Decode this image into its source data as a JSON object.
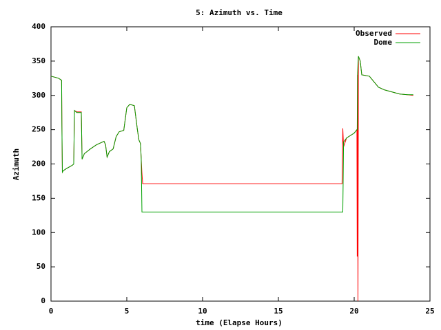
{
  "chart_data": {
    "type": "line",
    "title": "5: Azimuth vs. Time",
    "xlabel": "time (Elapse Hours)",
    "ylabel": "Azimuth",
    "x": [
      0,
      0.5,
      0.7,
      0.72,
      0.75,
      0.8,
      1.0,
      1.4,
      1.5,
      1.55,
      1.7,
      2.0,
      2.05,
      2.2,
      2.6,
      3.0,
      3.5,
      3.6,
      3.7,
      3.85,
      4.1,
      4.3,
      4.5,
      4.8,
      5.0,
      5.2,
      5.5,
      5.7,
      5.8,
      5.9,
      5.95,
      6.0,
      6.05,
      19.2,
      19.25,
      19.3,
      19.5,
      20.0,
      20.18,
      20.2,
      20.22,
      20.25,
      20.28,
      20.4,
      20.5,
      21.0,
      21.3,
      21.6,
      22.0,
      22.5,
      23.0,
      23.5,
      23.9
    ],
    "series": [
      {
        "name": "Observed",
        "color": "#ff0000",
        "values": [
          328,
          325,
          322,
          255,
          188,
          190,
          193,
          198,
          200,
          278,
          276,
          276,
          207,
          215,
          222,
          228,
          233,
          228,
          210,
          218,
          222,
          240,
          247,
          249,
          282,
          287,
          285,
          250,
          235,
          230,
          208,
          186,
          171,
          171,
          252,
          225,
          238,
          245,
          250,
          65,
          330,
          0,
          357,
          350,
          330,
          328,
          320,
          312,
          308,
          305,
          302,
          301,
          300
        ]
      },
      {
        "name": "Dome",
        "color": "#00a000",
        "values": [
          328,
          325,
          322,
          255,
          188,
          190,
          193,
          198,
          200,
          278,
          275,
          275,
          207,
          215,
          222,
          228,
          233,
          228,
          210,
          218,
          222,
          240,
          247,
          249,
          282,
          287,
          285,
          250,
          235,
          230,
          210,
          130,
          130,
          130,
          130,
          232,
          238,
          245,
          250,
          250,
          330,
          345,
          357,
          350,
          330,
          328,
          320,
          312,
          308,
          305,
          302,
          301,
          301
        ]
      }
    ],
    "xlim": [
      0,
      25
    ],
    "xticks": [
      0,
      5,
      10,
      15,
      20,
      25
    ],
    "ylim": [
      0,
      400
    ],
    "yticks": [
      0,
      50,
      100,
      150,
      200,
      250,
      300,
      350,
      400
    ],
    "legend": "top-right"
  }
}
